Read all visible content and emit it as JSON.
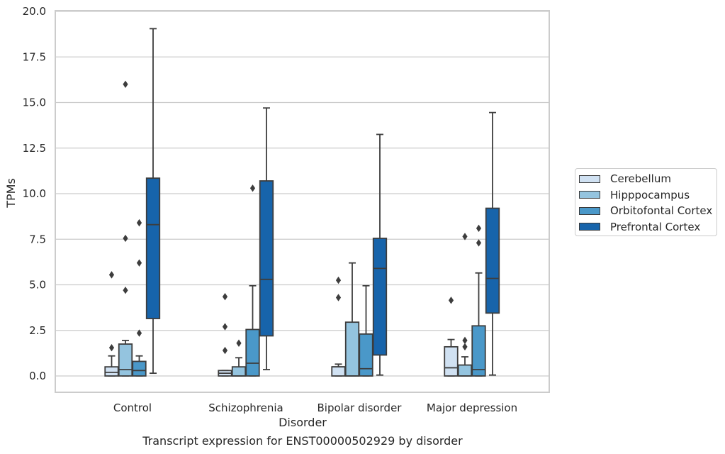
{
  "chart_data": {
    "type": "box",
    "title": "Transcript expression for ENST00000502929 by disorder",
    "xlabel": "Disorder",
    "ylabel": "TPMs",
    "ylim": [
      -0.9,
      20.0
    ],
    "yticks": [
      "0.0",
      "2.5",
      "5.0",
      "7.5",
      "10.0",
      "12.5",
      "15.0",
      "17.5",
      "20.0"
    ],
    "categories": [
      "Control",
      "Schizophrenia",
      "Bipolar disorder",
      "Major depression"
    ],
    "grid": true,
    "legend_position": "right",
    "series": [
      {
        "name": "Cerebellum",
        "color": "#d0e1f2",
        "boxes": [
          {
            "whisker_low": 0.0,
            "q1": 0.0,
            "median": 0.2,
            "q3": 0.5,
            "whisker_high": 1.1,
            "outliers": [
              1.55,
              5.55
            ]
          },
          {
            "whisker_low": 0.0,
            "q1": 0.0,
            "median": 0.15,
            "q3": 0.3,
            "whisker_high": 0.3,
            "outliers": [
              1.4,
              2.7,
              4.35
            ]
          },
          {
            "whisker_low": 0.0,
            "q1": 0.0,
            "median": 0.5,
            "q3": 0.5,
            "whisker_high": 0.65,
            "outliers": [
              4.3,
              5.25
            ]
          },
          {
            "whisker_low": 0.0,
            "q1": 0.0,
            "median": 0.45,
            "q3": 1.6,
            "whisker_high": 2.0,
            "outliers": [
              4.15
            ]
          }
        ]
      },
      {
        "name": "Hipppocampus",
        "color": "#94c4df",
        "boxes": [
          {
            "whisker_low": 0.0,
            "q1": 0.0,
            "median": 0.35,
            "q3": 1.75,
            "whisker_high": 1.95,
            "outliers": [
              4.7,
              7.55,
              16.0
            ]
          },
          {
            "whisker_low": 0.0,
            "q1": 0.0,
            "median": 0.0,
            "q3": 0.5,
            "whisker_high": 1.0,
            "outliers": [
              1.8
            ]
          },
          {
            "whisker_low": 0.0,
            "q1": 0.0,
            "median": 0.0,
            "q3": 2.95,
            "whisker_high": 6.2,
            "outliers": []
          },
          {
            "whisker_low": 0.0,
            "q1": 0.0,
            "median": 0.0,
            "q3": 0.6,
            "whisker_high": 1.05,
            "outliers": [
              1.6,
              1.95,
              7.65
            ]
          }
        ]
      },
      {
        "name": "Orbitofontal Cortex",
        "color": "#4a98c9",
        "boxes": [
          {
            "whisker_low": 0.0,
            "q1": 0.0,
            "median": 0.3,
            "q3": 0.8,
            "whisker_high": 1.1,
            "outliers": [
              2.35,
              6.2,
              8.4
            ]
          },
          {
            "whisker_low": 0.0,
            "q1": 0.0,
            "median": 0.7,
            "q3": 2.55,
            "whisker_high": 4.95,
            "outliers": [
              10.3
            ]
          },
          {
            "whisker_low": 0.0,
            "q1": 0.0,
            "median": 0.4,
            "q3": 2.3,
            "whisker_high": 4.95,
            "outliers": []
          },
          {
            "whisker_low": 0.0,
            "q1": 0.0,
            "median": 0.35,
            "q3": 2.75,
            "whisker_high": 5.65,
            "outliers": [
              7.3,
              8.1
            ]
          }
        ]
      },
      {
        "name": "Prefrontal Cortex",
        "color": "#1764ab",
        "boxes": [
          {
            "whisker_low": 0.15,
            "q1": 3.15,
            "median": 8.3,
            "q3": 10.85,
            "whisker_high": 19.05,
            "outliers": []
          },
          {
            "whisker_low": 0.35,
            "q1": 2.2,
            "median": 5.3,
            "q3": 10.7,
            "whisker_high": 14.7,
            "outliers": []
          },
          {
            "whisker_low": 0.05,
            "q1": 1.15,
            "median": 5.9,
            "q3": 7.55,
            "whisker_high": 13.25,
            "outliers": []
          },
          {
            "whisker_low": 0.05,
            "q1": 3.45,
            "median": 5.35,
            "q3": 9.2,
            "whisker_high": 14.45,
            "outliers": []
          }
        ]
      }
    ]
  }
}
